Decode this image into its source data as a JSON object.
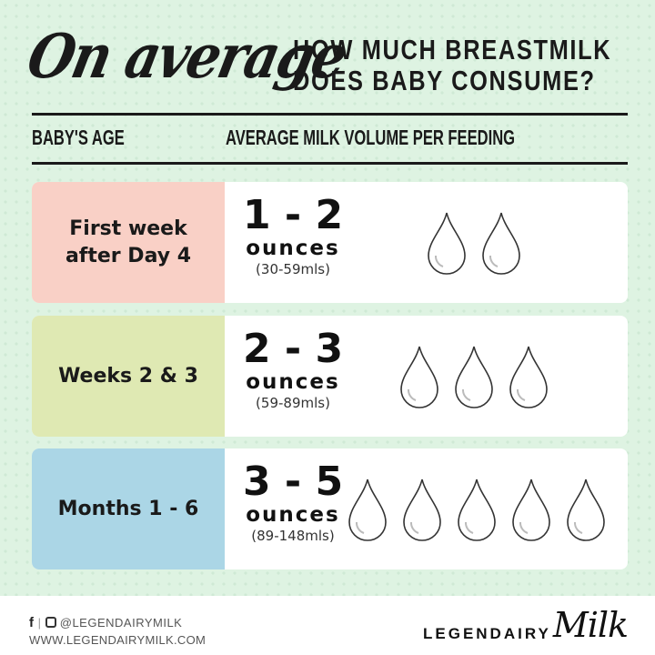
{
  "header": {
    "script_title": "On average",
    "title_line1": "HOW MUCH BREASTMILK",
    "title_line2": "DOES BABY CONSUME?",
    "col_age": "BABY'S AGE",
    "col_volume": "AVERAGE MILK VOLUME PER FEEDING"
  },
  "rows": [
    {
      "age": "First week after Day 4",
      "range": "1 - 2",
      "unit": "ounces",
      "ml": "(30-59mls)",
      "drops": 2,
      "color": "#f9d0c6"
    },
    {
      "age": "Weeks 2 & 3",
      "range": "2 - 3",
      "unit": "ounces",
      "ml": "(59-89mls)",
      "drops": 3,
      "color": "#dfe9b3"
    },
    {
      "age": "Months 1 - 6",
      "range": "3 - 5",
      "unit": "ounces",
      "ml": "(89-148mls)",
      "drops": 5,
      "color": "#abd6e6"
    }
  ],
  "footer": {
    "handle": "@LEGENDAIRYMILK",
    "website": "WWW.LEGENDAIRYMILK.COM",
    "logo_text": "LEGENDAIRY",
    "logo_script": "Milk",
    "icons": [
      "facebook-icon",
      "instagram-icon"
    ]
  },
  "colors": {
    "background": "#def3e2",
    "text": "#1a1a1a"
  }
}
